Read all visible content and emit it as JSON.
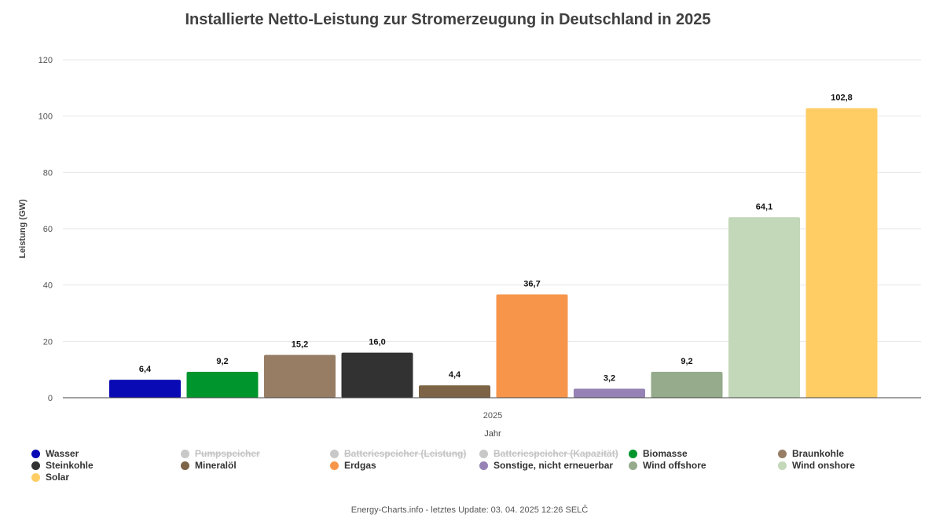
{
  "chart_data": {
    "type": "bar",
    "title": "Installierte Netto-Leistung zur Stromerzeugung in Deutschland in 2025",
    "xlabel": "Jahr",
    "ylabel": "Leistung (GW)",
    "categories": [
      "2025"
    ],
    "ylim": [
      0,
      120
    ],
    "yticks": [
      0,
      20,
      40,
      60,
      80,
      100,
      120
    ],
    "grid": true,
    "legend_position": "bottom",
    "series": [
      {
        "name": "Wasser",
        "value": 6.4,
        "label": "6,4",
        "color": "#0a0ab4",
        "visible": true
      },
      {
        "name": "Pumpspeicher",
        "value": null,
        "label": "",
        "color": "#c8c8c8",
        "visible": false
      },
      {
        "name": "Batteriespeicher (Leistung)",
        "value": null,
        "label": "",
        "color": "#c8c8c8",
        "visible": false
      },
      {
        "name": "Batteriespeicher (Kapazität)",
        "value": null,
        "label": "",
        "color": "#c8c8c8",
        "visible": false
      },
      {
        "name": "Biomasse",
        "value": 9.2,
        "label": "9,2",
        "color": "#00962d",
        "visible": true
      },
      {
        "name": "Braunkohle",
        "value": 15.2,
        "label": "15,2",
        "color": "#967d64",
        "visible": true
      },
      {
        "name": "Steinkohle",
        "value": 16.0,
        "label": "16,0",
        "color": "#323232",
        "visible": true
      },
      {
        "name": "Mineralöl",
        "value": 4.4,
        "label": "4,4",
        "color": "#7d6446",
        "visible": true
      },
      {
        "name": "Erdgas",
        "value": 36.7,
        "label": "36,7",
        "color": "#f7964b",
        "visible": true
      },
      {
        "name": "Sonstige, nicht erneuerbar",
        "value": 3.2,
        "label": "3,2",
        "color": "#9682b4",
        "visible": true
      },
      {
        "name": "Wind offshore",
        "value": 9.2,
        "label": "9,2",
        "color": "#96aa8c",
        "visible": true
      },
      {
        "name": "Wind onshore",
        "value": 64.1,
        "label": "64,1",
        "color": "#c3d7b9",
        "visible": true
      },
      {
        "name": "Solar",
        "value": 102.8,
        "label": "102,8",
        "color": "#ffcd64",
        "visible": true
      }
    ]
  },
  "footer": "Energy-Charts.info - letztes Update: 03. 04. 2025 12:26 SELČ"
}
